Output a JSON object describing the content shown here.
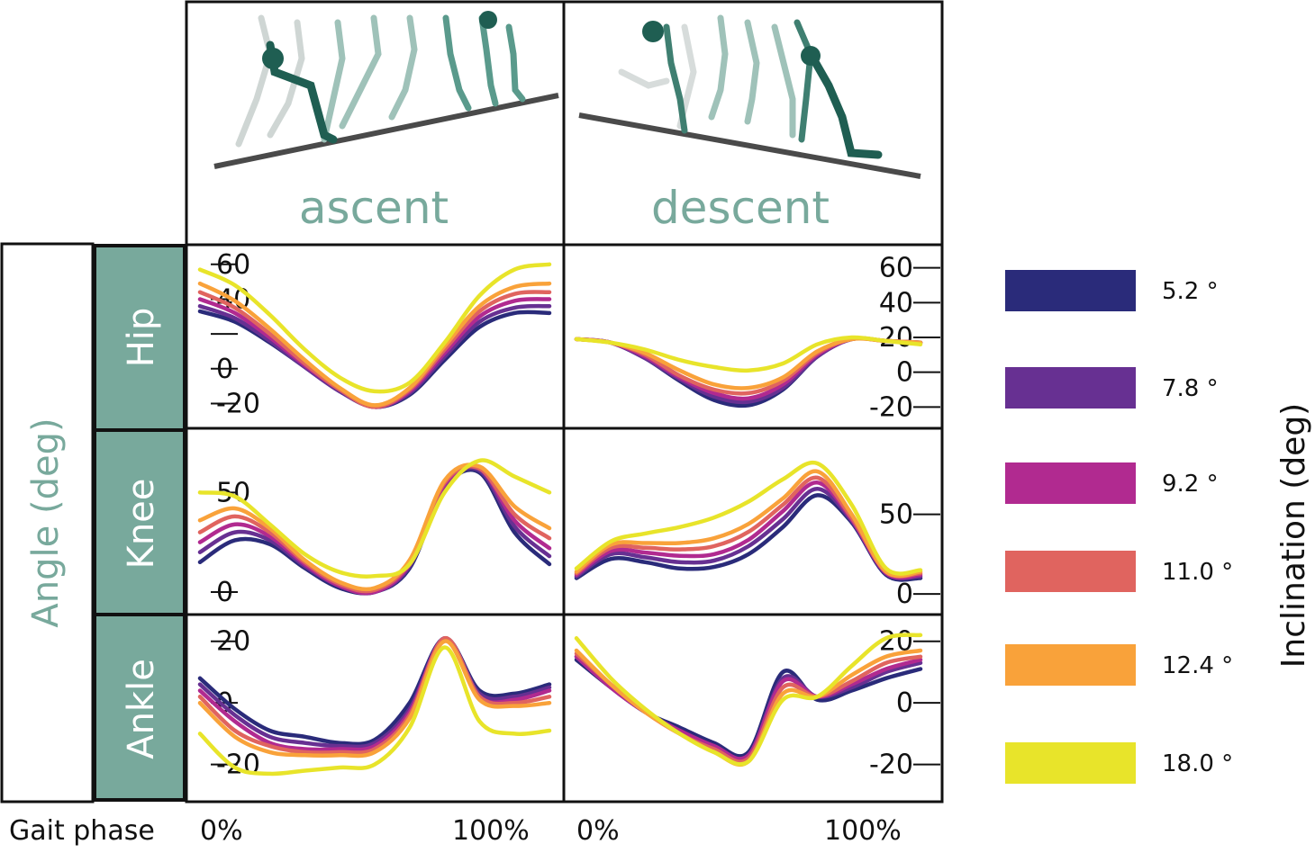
{
  "header": {
    "ascent_label": "ascent",
    "descent_label": "descent"
  },
  "row_title": "Angle (deg)",
  "legend_title": "Inclination (deg)",
  "gait_phase_label": "Gait phase",
  "colors": {
    "teal_panel": "#78a99c",
    "skeleton": "#1f5e52",
    "ramp": "#4a4a4a",
    "frame": "#111111",
    "series": [
      "#2a2b7a",
      "#673092",
      "#b12a90",
      "#e0645f",
      "#f9a23a",
      "#e8e42a"
    ]
  },
  "chart_data": [
    {
      "type": "line",
      "panel": "ascent",
      "joint": "Hip",
      "row_label": "Hip",
      "x": [
        0,
        10,
        20,
        30,
        40,
        50,
        60,
        70,
        80,
        90,
        100
      ],
      "xticklabels": [
        "0%",
        "100%"
      ],
      "yticks": [
        60,
        40,
        20,
        0,
        -20
      ],
      "yticklabels": [
        "60",
        "40",
        "",
        "0",
        "-20"
      ],
      "ylim": [
        -27,
        63
      ],
      "series": [
        {
          "name": "5.2 °",
          "values": [
            33,
            27,
            15,
            1,
            -13,
            -22,
            -15,
            5,
            24,
            32,
            32
          ]
        },
        {
          "name": "7.8 °",
          "values": [
            36,
            29,
            16,
            1,
            -13,
            -22,
            -14,
            7,
            27,
            35,
            36
          ]
        },
        {
          "name": "9.2 °",
          "values": [
            40,
            32,
            18,
            2,
            -12,
            -22,
            -13,
            9,
            30,
            39,
            40
          ]
        },
        {
          "name": "11.0 °",
          "values": [
            44,
            35,
            20,
            3,
            -12,
            -22,
            -12,
            11,
            33,
            43,
            44
          ]
        },
        {
          "name": "12.4 °",
          "values": [
            49,
            39,
            23,
            5,
            -11,
            -21,
            -11,
            13,
            36,
            47,
            49
          ]
        },
        {
          "name": "18.0 °",
          "values": [
            57,
            48,
            31,
            11,
            -5,
            -13,
            -8,
            15,
            42,
            57,
            60
          ]
        }
      ]
    },
    {
      "type": "line",
      "panel": "descent",
      "joint": "Hip",
      "x": [
        0,
        10,
        20,
        30,
        40,
        50,
        60,
        70,
        80,
        90,
        100
      ],
      "yticks": [
        60,
        40,
        20,
        0,
        -20
      ],
      "yticklabels": [
        "60",
        "40",
        "20",
        "0",
        "-20"
      ],
      "ylim": [
        -25,
        65
      ],
      "series": [
        {
          "name": "5.2 °",
          "values": [
            19,
            17,
            8,
            -5,
            -16,
            -19,
            -10,
            9,
            19,
            18,
            17
          ]
        },
        {
          "name": "7.8 °",
          "values": [
            19,
            17,
            8,
            -4,
            -14,
            -17,
            -9,
            9,
            19,
            18,
            17
          ]
        },
        {
          "name": "9.2 °",
          "values": [
            19,
            17,
            9,
            -3,
            -12,
            -15,
            -7,
            10,
            19,
            18,
            17
          ]
        },
        {
          "name": "11.0 °",
          "values": [
            19,
            17,
            10,
            -2,
            -10,
            -12,
            -5,
            11,
            19,
            18,
            17
          ]
        },
        {
          "name": "12.4 °",
          "values": [
            19,
            17,
            11,
            1,
            -7,
            -9,
            -3,
            12,
            19,
            18,
            17
          ]
        },
        {
          "name": "18.0 °",
          "values": [
            19,
            17,
            13,
            7,
            3,
            1,
            5,
            16,
            20,
            18,
            16
          ]
        }
      ]
    },
    {
      "type": "line",
      "panel": "ascent",
      "joint": "Knee",
      "row_label": "Knee",
      "x": [
        0,
        10,
        20,
        30,
        40,
        50,
        60,
        70,
        80,
        90,
        100
      ],
      "yticks": [
        50,
        0
      ],
      "yticklabels": [
        "50",
        "0"
      ],
      "ylim": [
        -5,
        75
      ],
      "series": [
        {
          "name": "5.2 °",
          "values": [
            15,
            26,
            24,
            12,
            2,
            0,
            12,
            52,
            60,
            30,
            14
          ]
        },
        {
          "name": "7.8 °",
          "values": [
            20,
            30,
            26,
            13,
            3,
            0,
            13,
            53,
            61,
            33,
            18
          ]
        },
        {
          "name": "9.2 °",
          "values": [
            25,
            34,
            28,
            14,
            3,
            0,
            14,
            54,
            62,
            36,
            22
          ]
        },
        {
          "name": "11.0 °",
          "values": [
            30,
            38,
            30,
            15,
            4,
            1,
            15,
            55,
            62,
            39,
            27
          ]
        },
        {
          "name": "12.4 °",
          "values": [
            36,
            42,
            32,
            16,
            5,
            2,
            16,
            56,
            63,
            43,
            32
          ]
        },
        {
          "name": "18.0 °",
          "values": [
            50,
            48,
            34,
            19,
            10,
            8,
            14,
            50,
            66,
            58,
            50
          ]
        }
      ]
    },
    {
      "type": "line",
      "panel": "descent",
      "joint": "Knee",
      "x": [
        0,
        10,
        20,
        30,
        40,
        50,
        60,
        70,
        80,
        90,
        100
      ],
      "yticks": [
        50,
        0
      ],
      "yticklabels": [
        "50",
        "0"
      ],
      "ylim": [
        -5,
        95
      ],
      "series": [
        {
          "name": "5.2 °",
          "values": [
            10,
            22,
            20,
            16,
            17,
            25,
            42,
            62,
            45,
            12,
            10
          ]
        },
        {
          "name": "7.8 °",
          "values": [
            11,
            25,
            23,
            20,
            21,
            30,
            47,
            66,
            46,
            13,
            11
          ]
        },
        {
          "name": "9.2 °",
          "values": [
            12,
            27,
            26,
            24,
            25,
            34,
            52,
            70,
            47,
            13,
            12
          ]
        },
        {
          "name": "11.0 °",
          "values": [
            13,
            29,
            29,
            28,
            30,
            39,
            56,
            73,
            48,
            14,
            13
          ]
        },
        {
          "name": "12.4 °",
          "values": [
            14,
            31,
            32,
            32,
            35,
            44,
            60,
            77,
            50,
            14,
            14
          ]
        },
        {
          "name": "18.0 °",
          "values": [
            16,
            33,
            38,
            42,
            48,
            58,
            72,
            82,
            56,
            16,
            15
          ]
        }
      ]
    },
    {
      "type": "line",
      "panel": "ascent",
      "joint": "Ankle",
      "row_label": "Ankle",
      "x": [
        0,
        10,
        20,
        30,
        40,
        50,
        60,
        70,
        80,
        90,
        100
      ],
      "yticks": [
        20,
        0,
        -20
      ],
      "yticklabels": [
        "20",
        "0",
        "-20"
      ],
      "ylim": [
        -28,
        24
      ],
      "series": [
        {
          "name": "5.2 °",
          "values": [
            8,
            -2,
            -9,
            -11,
            -13,
            -12,
            0,
            21,
            4,
            3,
            6
          ]
        },
        {
          "name": "7.8 °",
          "values": [
            6,
            -4,
            -11,
            -13,
            -14,
            -13,
            -2,
            21,
            3,
            2,
            5
          ]
        },
        {
          "name": "9.2 °",
          "values": [
            4,
            -6,
            -13,
            -15,
            -15,
            -14,
            -3,
            21,
            2,
            1,
            4
          ]
        },
        {
          "name": "11.0 °",
          "values": [
            2,
            -9,
            -14,
            -16,
            -16,
            -15,
            -4,
            21,
            2,
            0,
            2
          ]
        },
        {
          "name": "12.4 °",
          "values": [
            0,
            -11,
            -16,
            -17,
            -17,
            -16,
            -5,
            20,
            1,
            -1,
            0
          ]
        },
        {
          "name": "18.0 °",
          "values": [
            -10,
            -21,
            -23,
            -22,
            -21,
            -20,
            -8,
            18,
            -6,
            -10,
            -9
          ]
        }
      ]
    },
    {
      "type": "line",
      "panel": "descent",
      "joint": "Ankle",
      "x": [
        0,
        10,
        20,
        30,
        40,
        50,
        60,
        70,
        80,
        90,
        100
      ],
      "yticks": [
        20,
        0,
        -20
      ],
      "yticklabels": [
        "20",
        "0",
        "-20"
      ],
      "ylim": [
        -28,
        24
      ],
      "series": [
        {
          "name": "5.2 °",
          "values": [
            14,
            5,
            -3,
            -8,
            -13,
            -16,
            10,
            1,
            4,
            8,
            11
          ]
        },
        {
          "name": "7.8 °",
          "values": [
            15,
            5,
            -3,
            -9,
            -14,
            -17,
            8,
            2,
            5,
            10,
            13
          ]
        },
        {
          "name": "9.2 °",
          "values": [
            15,
            5,
            -3,
            -9,
            -14,
            -17,
            7,
            2,
            6,
            11,
            14
          ]
        },
        {
          "name": "11.0 °",
          "values": [
            16,
            6,
            -3,
            -10,
            -15,
            -18,
            5,
            2,
            7,
            13,
            15
          ]
        },
        {
          "name": "12.4 °",
          "values": [
            17,
            6,
            -3,
            -10,
            -16,
            -19,
            3,
            2,
            9,
            15,
            17
          ]
        },
        {
          "name": "18.0 °",
          "values": [
            21,
            8,
            -2,
            -10,
            -16,
            -19,
            1,
            2,
            12,
            21,
            22
          ]
        }
      ]
    }
  ],
  "legend": {
    "items": [
      {
        "label": "5.2 °",
        "color": "#2a2b7a"
      },
      {
        "label": "7.8 °",
        "color": "#673092"
      },
      {
        "label": "9.2 °",
        "color": "#b12a90"
      },
      {
        "label": "11.0 °",
        "color": "#e0645f"
      },
      {
        "label": "12.4 °",
        "color": "#f9a23a"
      },
      {
        "label": "18.0 °",
        "color": "#e8e42a"
      }
    ]
  },
  "gait_axis": {
    "ascent_start": "0%",
    "ascent_end": "100%",
    "descent_start": "0%",
    "descent_end": "100%"
  }
}
